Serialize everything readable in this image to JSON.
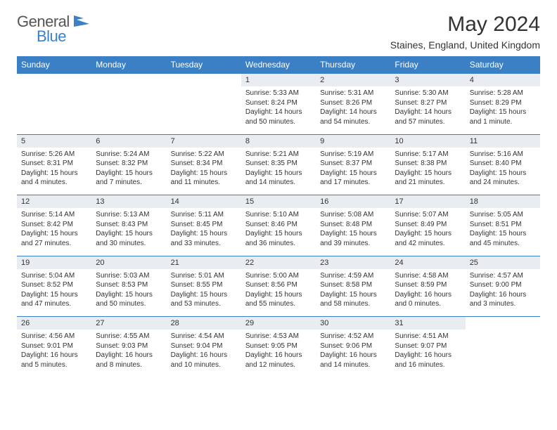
{
  "brand": {
    "part1": "General",
    "part2": "Blue"
  },
  "title": "May 2024",
  "location": "Staines, England, United Kingdom",
  "colors": {
    "header_bg": "#3b7fc4",
    "header_fg": "#ffffff",
    "daynum_bg": "#e9edf1",
    "border": "#3b7fc4",
    "text": "#333333",
    "page_bg": "#ffffff"
  },
  "day_labels": [
    "Sunday",
    "Monday",
    "Tuesday",
    "Wednesday",
    "Thursday",
    "Friday",
    "Saturday"
  ],
  "weeks": [
    [
      null,
      null,
      null,
      {
        "n": "1",
        "sr": "5:33 AM",
        "ss": "8:24 PM",
        "dl": "14 hours and 50 minutes."
      },
      {
        "n": "2",
        "sr": "5:31 AM",
        "ss": "8:26 PM",
        "dl": "14 hours and 54 minutes."
      },
      {
        "n": "3",
        "sr": "5:30 AM",
        "ss": "8:27 PM",
        "dl": "14 hours and 57 minutes."
      },
      {
        "n": "4",
        "sr": "5:28 AM",
        "ss": "8:29 PM",
        "dl": "15 hours and 1 minute."
      }
    ],
    [
      {
        "n": "5",
        "sr": "5:26 AM",
        "ss": "8:31 PM",
        "dl": "15 hours and 4 minutes."
      },
      {
        "n": "6",
        "sr": "5:24 AM",
        "ss": "8:32 PM",
        "dl": "15 hours and 7 minutes."
      },
      {
        "n": "7",
        "sr": "5:22 AM",
        "ss": "8:34 PM",
        "dl": "15 hours and 11 minutes."
      },
      {
        "n": "8",
        "sr": "5:21 AM",
        "ss": "8:35 PM",
        "dl": "15 hours and 14 minutes."
      },
      {
        "n": "9",
        "sr": "5:19 AM",
        "ss": "8:37 PM",
        "dl": "15 hours and 17 minutes."
      },
      {
        "n": "10",
        "sr": "5:17 AM",
        "ss": "8:38 PM",
        "dl": "15 hours and 21 minutes."
      },
      {
        "n": "11",
        "sr": "5:16 AM",
        "ss": "8:40 PM",
        "dl": "15 hours and 24 minutes."
      }
    ],
    [
      {
        "n": "12",
        "sr": "5:14 AM",
        "ss": "8:42 PM",
        "dl": "15 hours and 27 minutes."
      },
      {
        "n": "13",
        "sr": "5:13 AM",
        "ss": "8:43 PM",
        "dl": "15 hours and 30 minutes."
      },
      {
        "n": "14",
        "sr": "5:11 AM",
        "ss": "8:45 PM",
        "dl": "15 hours and 33 minutes."
      },
      {
        "n": "15",
        "sr": "5:10 AM",
        "ss": "8:46 PM",
        "dl": "15 hours and 36 minutes."
      },
      {
        "n": "16",
        "sr": "5:08 AM",
        "ss": "8:48 PM",
        "dl": "15 hours and 39 minutes."
      },
      {
        "n": "17",
        "sr": "5:07 AM",
        "ss": "8:49 PM",
        "dl": "15 hours and 42 minutes."
      },
      {
        "n": "18",
        "sr": "5:05 AM",
        "ss": "8:51 PM",
        "dl": "15 hours and 45 minutes."
      }
    ],
    [
      {
        "n": "19",
        "sr": "5:04 AM",
        "ss": "8:52 PM",
        "dl": "15 hours and 47 minutes."
      },
      {
        "n": "20",
        "sr": "5:03 AM",
        "ss": "8:53 PM",
        "dl": "15 hours and 50 minutes."
      },
      {
        "n": "21",
        "sr": "5:01 AM",
        "ss": "8:55 PM",
        "dl": "15 hours and 53 minutes."
      },
      {
        "n": "22",
        "sr": "5:00 AM",
        "ss": "8:56 PM",
        "dl": "15 hours and 55 minutes."
      },
      {
        "n": "23",
        "sr": "4:59 AM",
        "ss": "8:58 PM",
        "dl": "15 hours and 58 minutes."
      },
      {
        "n": "24",
        "sr": "4:58 AM",
        "ss": "8:59 PM",
        "dl": "16 hours and 0 minutes."
      },
      {
        "n": "25",
        "sr": "4:57 AM",
        "ss": "9:00 PM",
        "dl": "16 hours and 3 minutes."
      }
    ],
    [
      {
        "n": "26",
        "sr": "4:56 AM",
        "ss": "9:01 PM",
        "dl": "16 hours and 5 minutes."
      },
      {
        "n": "27",
        "sr": "4:55 AM",
        "ss": "9:03 PM",
        "dl": "16 hours and 8 minutes."
      },
      {
        "n": "28",
        "sr": "4:54 AM",
        "ss": "9:04 PM",
        "dl": "16 hours and 10 minutes."
      },
      {
        "n": "29",
        "sr": "4:53 AM",
        "ss": "9:05 PM",
        "dl": "16 hours and 12 minutes."
      },
      {
        "n": "30",
        "sr": "4:52 AM",
        "ss": "9:06 PM",
        "dl": "16 hours and 14 minutes."
      },
      {
        "n": "31",
        "sr": "4:51 AM",
        "ss": "9:07 PM",
        "dl": "16 hours and 16 minutes."
      },
      null
    ]
  ],
  "labels": {
    "sunrise": "Sunrise:",
    "sunset": "Sunset:",
    "daylight": "Daylight:"
  }
}
